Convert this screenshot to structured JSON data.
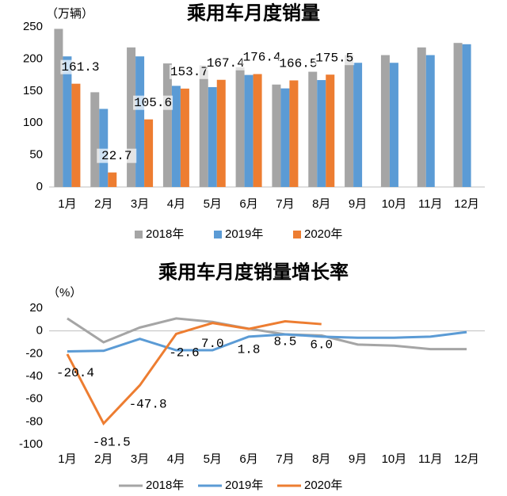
{
  "chart_data": [
    {
      "type": "bar",
      "title": "乘用车月度销量",
      "unit": "（万辆）",
      "categories": [
        "1月",
        "2月",
        "3月",
        "4月",
        "5月",
        "6月",
        "7月",
        "8月",
        "9月",
        "10月",
        "11月",
        "12月"
      ],
      "ylim": [
        0,
        250
      ],
      "yticks": [
        0,
        50,
        100,
        150,
        200,
        250
      ],
      "series": [
        {
          "name": "2018年",
          "color": "#a5a5a5",
          "values": [
            247,
            148,
            218,
            193,
            190,
            187,
            160,
            180,
            206,
            206,
            218,
            225
          ]
        },
        {
          "name": "2019年",
          "color": "#5b9bd5",
          "values": [
            204,
            122,
            204,
            158,
            156,
            175,
            154,
            167,
            194,
            194,
            206,
            223
          ]
        },
        {
          "name": "2020年",
          "color": "#ed7d31",
          "values": [
            161.3,
            22.7,
            105.6,
            153.7,
            167.4,
            176.4,
            166.5,
            175.5,
            null,
            null,
            null,
            null
          ]
        }
      ]
    },
    {
      "type": "line",
      "title": "乘用车月度销量增长率",
      "unit": "（%）",
      "categories": [
        "1月",
        "2月",
        "3月",
        "4月",
        "5月",
        "6月",
        "7月",
        "8月",
        "9月",
        "10月",
        "11月",
        "12月"
      ],
      "ylim": [
        -100,
        20
      ],
      "yticks": [
        -100,
        -80,
        -60,
        -40,
        -20,
        0,
        20
      ],
      "series": [
        {
          "name": "2018年",
          "color": "#a5a5a5",
          "values": [
            11,
            -10,
            3,
            11,
            8,
            2,
            -3,
            -4,
            -12,
            -13,
            -16,
            -16
          ]
        },
        {
          "name": "2019年",
          "color": "#5b9bd5",
          "values": [
            -18,
            -17.5,
            -7,
            -17,
            -17,
            -5,
            -3,
            -5,
            -6,
            -6,
            -5,
            -1
          ]
        },
        {
          "name": "2020年",
          "color": "#ed7d31",
          "values": [
            -20.4,
            -81.5,
            -47.8,
            -2.6,
            7,
            1.8,
            8.5,
            6,
            null,
            null,
            null,
            null
          ],
          "value_labels": [
            "-20.4",
            "-81.5",
            "-47.8",
            "-2.6",
            "7.0",
            "1.8",
            "8.5",
            "6.0",
            null,
            null,
            null,
            null
          ]
        }
      ]
    }
  ]
}
